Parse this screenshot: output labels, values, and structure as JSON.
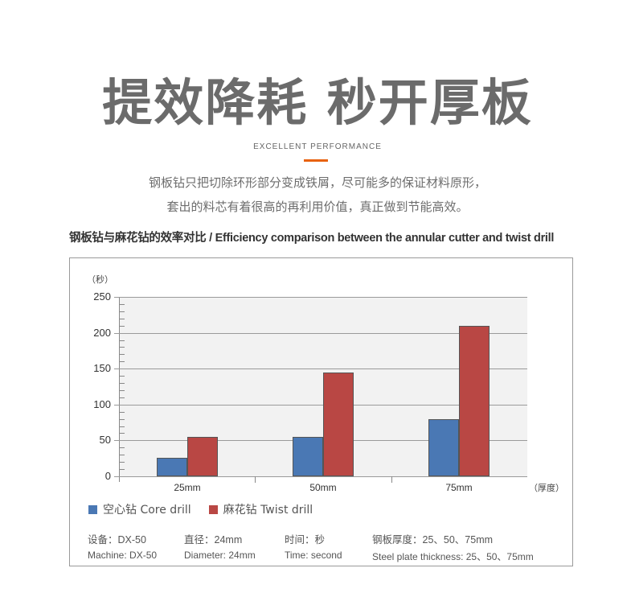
{
  "header": {
    "title": "提效降耗 秒开厚板",
    "subtitle": "EXCELLENT PERFORMANCE",
    "accent_color": "#e8620f",
    "description_lines": [
      "钢板钻只把切除环形部分变成铁屑，尽可能多的保证材料原形，",
      "套出的料芯有着很高的再利用价值，真正做到节能高效。"
    ],
    "caption": "钢板钻与麻花钻的效率对比 / Efficiency comparison between the annular cutter and twist drill"
  },
  "chart_data": {
    "type": "bar",
    "title": "钢板钻与麻花钻的效率对比 / Efficiency comparison between the annular cutter and twist drill",
    "ylabel": "（秒）",
    "xlabel": "（厚度）",
    "categories": [
      "25mm",
      "50mm",
      "75mm"
    ],
    "series": [
      {
        "name": "空心钻 Core drill",
        "color": "#4a78b4",
        "values": [
          26,
          55,
          80
        ]
      },
      {
        "name": "麻花钻 Twist drill",
        "color": "#b94744",
        "values": [
          55,
          145,
          210
        ]
      }
    ],
    "yticks": [
      "0",
      "50",
      "100",
      "150",
      "200",
      "250"
    ],
    "ylim": [
      0,
      250
    ],
    "grid": true,
    "legend_position": "bottom"
  },
  "specs": [
    {
      "zh": "设备：DX-50",
      "en": "Machine: DX-50"
    },
    {
      "zh": "直径：24mm",
      "en": "Diameter: 24mm"
    },
    {
      "zh": "时间：秒",
      "en": "Time: second"
    },
    {
      "zh": "钢板厚度：25、50、75mm",
      "en": "Steel plate thickness: 25、50、75mm"
    }
  ]
}
